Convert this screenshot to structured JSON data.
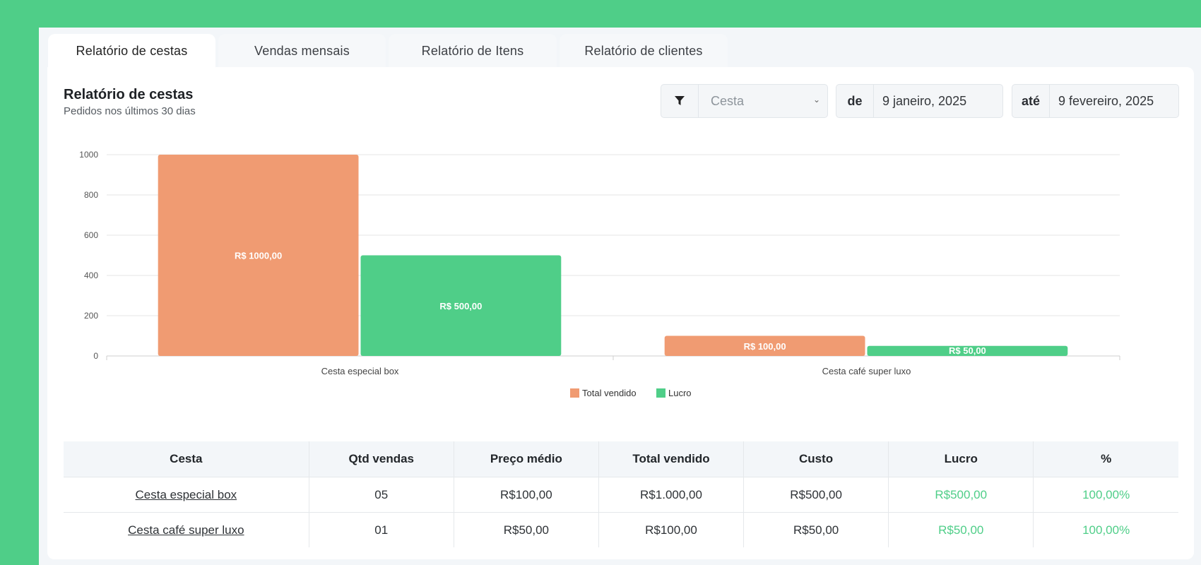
{
  "tabs": [
    {
      "label": "Relatório de cestas",
      "active": true
    },
    {
      "label": "Vendas mensais",
      "active": false
    },
    {
      "label": "Relatório de Itens",
      "active": false
    },
    {
      "label": "Relatório de clientes",
      "active": false
    }
  ],
  "report": {
    "title": "Relatório de cestas",
    "subtitle": "Pedidos nos últimos 30 dias"
  },
  "filters": {
    "icon": "filter-icon",
    "cesta_placeholder": "Cesta",
    "de_label": "de",
    "de_value": "9 janeiro, 2025",
    "ate_label": "até",
    "ate_value": "9 fevereiro, 2025"
  },
  "colors": {
    "brand_green": "#4fce88",
    "total_vendido": "#f09b72",
    "lucro": "#4fce88"
  },
  "chart_data": {
    "type": "bar",
    "categories": [
      "Cesta especial box",
      "Cesta café super luxo"
    ],
    "series": [
      {
        "name": "Total vendido",
        "values": [
          1000,
          100
        ],
        "labels": [
          "R$ 1000,00",
          "R$ 100,00"
        ],
        "color": "#f09b72"
      },
      {
        "name": "Lucro",
        "values": [
          500,
          50
        ],
        "labels": [
          "R$ 500,00",
          "R$ 50,00"
        ],
        "color": "#4fce88"
      }
    ],
    "yticks": [
      0,
      200,
      400,
      600,
      800,
      1000
    ],
    "ylim": [
      0,
      1000
    ],
    "grid": true,
    "legend": "bottom-center"
  },
  "table": {
    "headers": [
      "Cesta",
      "Qtd vendas",
      "Preço médio",
      "Total vendido",
      "Custo",
      "Lucro",
      "%"
    ],
    "rows": [
      {
        "cesta": "Cesta especial box",
        "qtd": "05",
        "preco": "R$100,00",
        "total": "R$1.000,00",
        "custo": "R$500,00",
        "lucro": "R$500,00",
        "pct": "100,00%"
      },
      {
        "cesta": "Cesta café super luxo",
        "qtd": "01",
        "preco": "R$50,00",
        "total": "R$100,00",
        "custo": "R$50,00",
        "lucro": "R$50,00",
        "pct": "100,00%"
      }
    ]
  }
}
